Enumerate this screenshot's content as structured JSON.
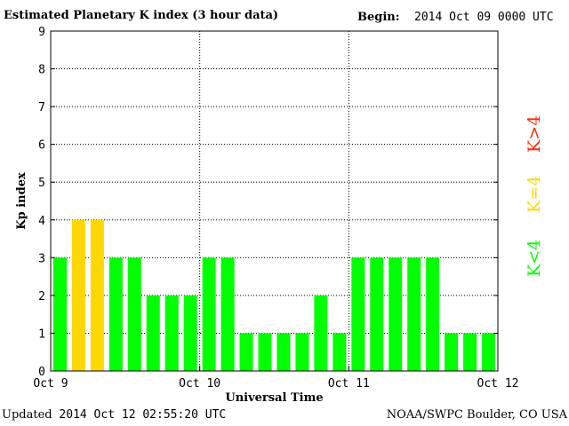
{
  "header": {
    "title": "Estimated Planetary K index (3 hour data)",
    "begin_label": "Begin:",
    "begin_value": "2014 Oct 09 0000 UTC"
  },
  "footer": {
    "updated_label": "Updated",
    "updated_value": "2014 Oct 12 02:55:20 UTC",
    "source": "NOAA/SWPC Boulder, CO USA"
  },
  "legend": {
    "high": "K>4",
    "mid": "K=4",
    "low": "K<4"
  },
  "colors": {
    "low": "#00ff00",
    "mid": "#ffd700",
    "high": "#ff2a00"
  },
  "chart_data": {
    "type": "bar",
    "title": "Estimated Planetary K index (3 hour data)",
    "xlabel": "Universal Time",
    "ylabel": "Kp index",
    "ylim": [
      0,
      9
    ],
    "yticks": [
      "0",
      "1",
      "2",
      "3",
      "4",
      "5",
      "6",
      "7",
      "8",
      "9"
    ],
    "xticks": [
      "Oct 9",
      "Oct 10",
      "Oct 11",
      "Oct 12"
    ],
    "grid": true,
    "values": [
      3,
      4,
      4,
      3,
      3,
      2,
      2,
      2,
      3,
      3,
      1,
      1,
      1,
      1,
      2,
      1,
      3,
      3,
      3,
      3,
      3,
      1,
      1,
      1
    ]
  }
}
